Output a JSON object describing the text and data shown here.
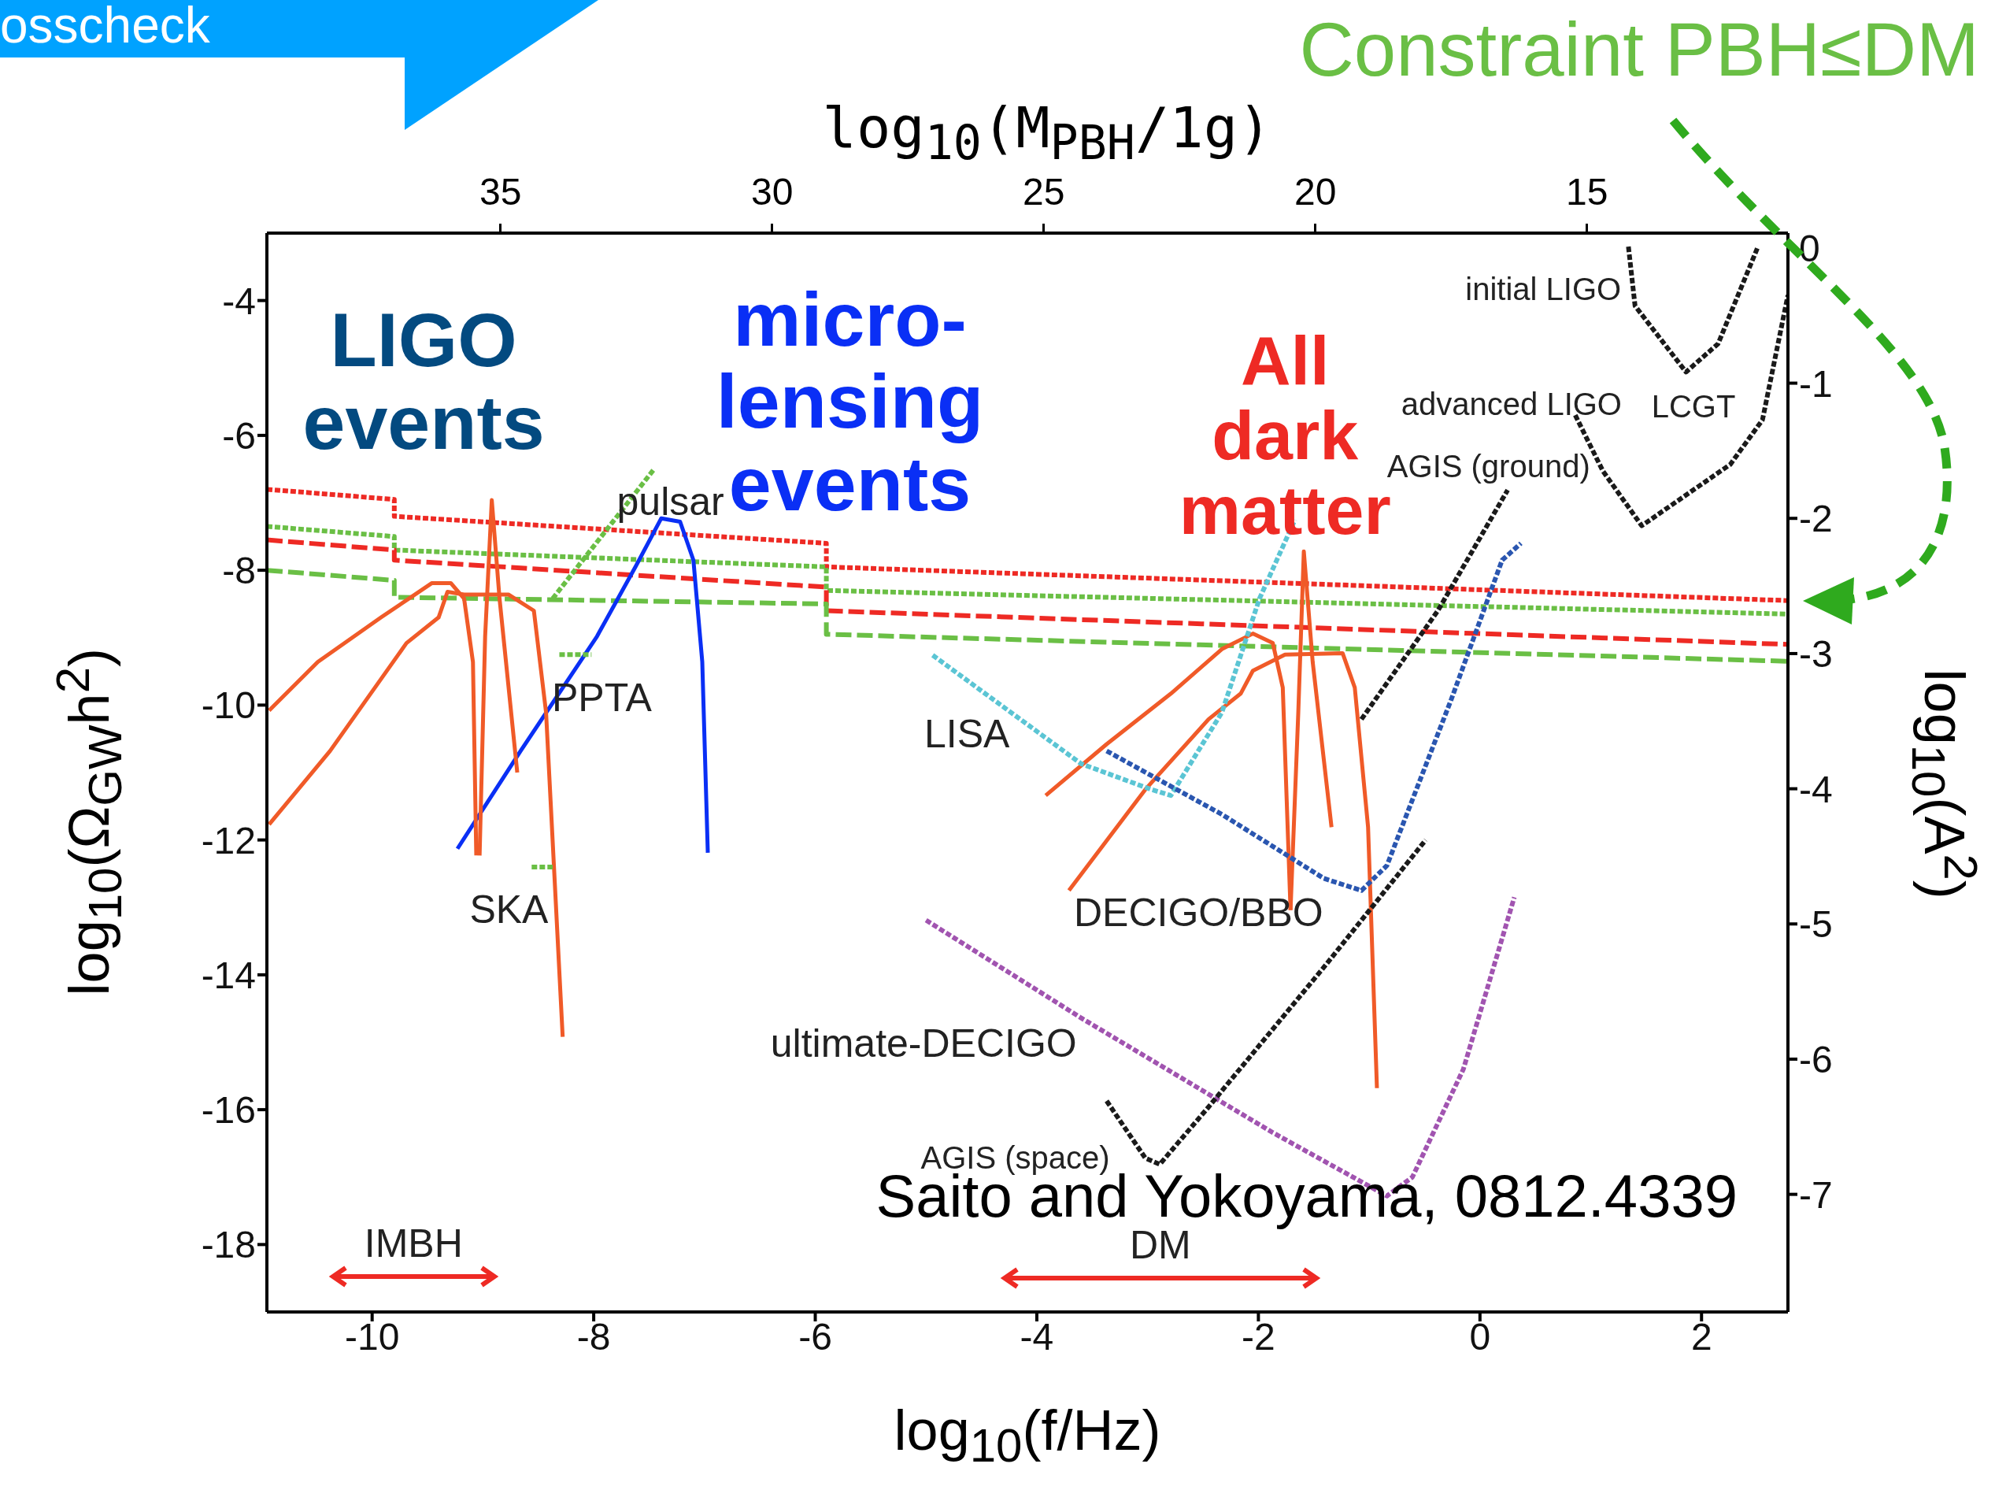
{
  "chart_data": {
    "type": "line",
    "xlabel": "log$_{10}$(f/Hz)",
    "ylabel": "log$_{10}$(Ω$_{GW}$h$^{2}$)",
    "x2label": "log$_{10}$(M$_{PBH}$/1g)",
    "y2label": "log$_{10}$(A$^{2}$)",
    "xlim": [
      -10.95,
      2.78
    ],
    "xticks": [
      -10,
      -8,
      -6,
      -4,
      -2,
      0,
      2
    ],
    "ylim": [
      -19,
      -3
    ],
    "yticks": [
      -18,
      -16,
      -14,
      -12,
      -10,
      -8,
      -6,
      -4
    ],
    "x2lim": [
      39.3,
      11.3
    ],
    "x2ticks": [
      35,
      30,
      25,
      20,
      15
    ],
    "y2lim": [
      -7.87,
      0.11
    ],
    "y2ticks": [
      0,
      -1,
      -2,
      -3,
      -4,
      -5,
      -6,
      -7
    ],
    "series": [
      {
        "color": "#ee2a24",
        "line_style": "dotted",
        "x": [
          -10.95,
          -9.8,
          -9.8,
          -5.9,
          -5.9,
          2.78
        ],
        "values": [
          -6.8,
          -6.95,
          -7.2,
          -7.6,
          -7.95,
          -8.45
        ]
      },
      {
        "color": "#6abf45",
        "line_style": "dotted",
        "x": [
          -10.95,
          -9.8,
          -9.8,
          -5.9,
          -5.9,
          2.78
        ],
        "values": [
          -7.35,
          -7.5,
          -7.7,
          -7.95,
          -8.3,
          -8.65
        ]
      },
      {
        "color": "#ee2a24",
        "line_style": "dashed",
        "x": [
          -10.95,
          -9.8,
          -9.8,
          -5.9,
          -5.9,
          2.78
        ],
        "values": [
          -7.55,
          -7.7,
          -7.85,
          -8.25,
          -8.6,
          -9.1
        ]
      },
      {
        "color": "#6abf45",
        "line_style": "dashed",
        "x": [
          -10.95,
          -9.8,
          -9.8,
          -5.9,
          -5.9,
          2.78
        ],
        "values": [
          -8.0,
          -8.15,
          -8.4,
          -8.5,
          -8.95,
          -9.35
        ]
      },
      {
        "color": "#0a2ff5",
        "line_style": "solid",
        "x": [
          -9.23,
          -8.66,
          -7.97,
          -7.62,
          -7.39,
          -7.22,
          -7.1,
          -7.02,
          -6.97
        ],
        "values": [
          -12.13,
          -10.68,
          -8.98,
          -7.94,
          -7.23,
          -7.28,
          -7.85,
          -9.36,
          -12.19
        ]
      },
      {
        "color": "#f05a28",
        "line_style": "solid",
        "x": [
          -10.93,
          -10.49,
          -9.92,
          -9.46,
          -9.29,
          -9.17,
          -9.09,
          -9.06
        ],
        "values": [
          -10.08,
          -9.36,
          -8.7,
          -8.19,
          -8.19,
          -8.42,
          -9.36,
          -12.23
        ]
      },
      {
        "color": "#f05a28",
        "line_style": "solid",
        "x": [
          -9.03,
          -8.98,
          -8.92,
          -8.85,
          -8.69
        ],
        "values": [
          -12.23,
          -8.98,
          -6.96,
          -8.42,
          -11.0
        ]
      },
      {
        "color": "#f05a28",
        "line_style": "solid",
        "x": [
          -10.93,
          -10.38,
          -9.69,
          -9.4,
          -9.32,
          -9.17,
          -8.77,
          -8.54,
          -8.43,
          -8.28
        ],
        "values": [
          -11.77,
          -10.68,
          -9.08,
          -8.7,
          -8.32,
          -8.36,
          -8.36,
          -8.6,
          -10.11,
          -14.92
        ]
      },
      {
        "color": "#f05a28",
        "line_style": "solid",
        "x": [
          -3.92,
          -3.37,
          -2.79,
          -2.33,
          -2.05,
          -1.87,
          -1.78,
          -1.71
        ],
        "values": [
          -11.34,
          -10.58,
          -9.83,
          -9.17,
          -8.94,
          -9.08,
          -9.74,
          -13.04
        ]
      },
      {
        "color": "#f05a28",
        "line_style": "solid",
        "x": [
          -1.71,
          -1.64,
          -1.59,
          -1.51,
          -1.34
        ],
        "values": [
          -13.04,
          -10.11,
          -7.72,
          -9.36,
          -11.81
        ]
      },
      {
        "color": "#f05a28",
        "line_style": "solid",
        "x": [
          -3.71,
          -3.02,
          -2.45,
          -2.16,
          -2.05,
          -1.76,
          -1.24,
          -1.13,
          -1.01,
          -0.93
        ],
        "values": [
          -12.75,
          -11.25,
          -10.21,
          -9.83,
          -9.49,
          -9.25,
          -9.23,
          -9.74,
          -11.81,
          -15.68
        ]
      },
      {
        "color": "#6abf45",
        "line_style": "dotted",
        "x": [
          -8.37,
          -7.45
        ],
        "values": [
          -8.42,
          -6.49
        ]
      },
      {
        "color": "#6abf45",
        "line_style": "dotted",
        "x": [
          -8.31,
          -8.02
        ],
        "values": [
          -9.25,
          -9.25
        ]
      },
      {
        "color": "#6abf45",
        "line_style": "dotted",
        "x": [
          -8.56,
          -8.37
        ],
        "values": [
          -12.4,
          -12.4
        ]
      },
      {
        "color": "#5bc5d4",
        "line_style": "dotted",
        "x": [
          -4.94,
          -3.6,
          -2.97,
          -2.79,
          -2.33,
          -1.99,
          -1.67
        ],
        "values": [
          -9.26,
          -10.87,
          -11.25,
          -11.34,
          -10.11,
          -8.42,
          -7.25
        ]
      },
      {
        "color": "#2a56b0",
        "line_style": "dotted",
        "x": [
          -3.37,
          -2.33,
          -1.41,
          -1.07,
          -0.84,
          -0.26,
          0.2,
          0.37
        ],
        "values": [
          -10.68,
          -11.62,
          -12.57,
          -12.75,
          -12.38,
          -9.92,
          -7.85,
          -7.6
        ]
      },
      {
        "color": "#a154b0",
        "line_style": "dotted",
        "x": [
          -5.0,
          -3.6,
          -1.87,
          -0.84,
          -0.61,
          -0.15,
          0.31
        ],
        "values": [
          -13.19,
          -14.64,
          -16.34,
          -17.28,
          -17.0,
          -15.4,
          -12.85
        ]
      },
      {
        "color": "#1a1a1a",
        "line_style": "dotted",
        "x": [
          -3.37,
          -3.02,
          -2.89,
          -2.45,
          -1.41,
          -0.49
        ],
        "values": [
          -15.87,
          -16.72,
          -16.81,
          -15.96,
          -13.89,
          -12.0
        ]
      },
      {
        "color": "#1a1a1a",
        "line_style": "dotted",
        "x": [
          -1.07,
          -0.38,
          0.25
        ],
        "values": [
          -10.21,
          -8.6,
          -6.81
        ]
      },
      {
        "color": "#1a1a1a",
        "line_style": "dotted",
        "x": [
          0.86,
          1.11,
          1.46,
          2.26,
          2.55,
          2.78
        ],
        "values": [
          -5.7,
          -6.53,
          -7.34,
          -6.43,
          -5.77,
          -3.92
        ]
      },
      {
        "color": "#1a1a1a",
        "line_style": "dotted",
        "x": [
          1.34,
          1.4,
          1.86,
          2.15,
          2.51
        ],
        "values": [
          -3.2,
          -4.08,
          -5.06,
          -4.64,
          -3.2
        ]
      }
    ],
    "annotations": [
      "osscheck",
      "Constraint PBH≤DM",
      "LIGO events",
      "micro-lensing events",
      "All dark matter",
      "pulsar",
      "PPTA",
      "SKA",
      "LISA",
      "DECIGO/BBO",
      "ultimate-DECIGO",
      "AGIS (space)",
      "Saito and Yokoyama, 0812.4339",
      "initial LIGO",
      "advanced LIGO",
      "LCGT",
      "AGIS (ground)",
      "IMBH",
      "DM"
    ]
  }
}
